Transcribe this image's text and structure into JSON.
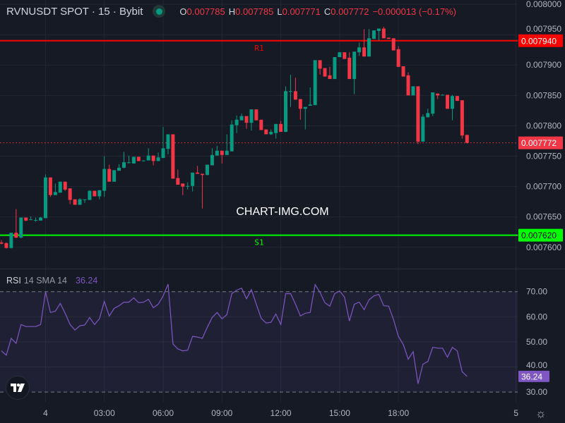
{
  "header": {
    "title": "RVNUSDT SPOT · 15 · Bybit",
    "status_dot_color": "#089981",
    "ohlc": {
      "o_label": "O",
      "o_value": "0.007785",
      "h_label": "H",
      "h_value": "0.007785",
      "l_label": "L",
      "l_value": "0.007771",
      "c_label": "C",
      "c_value": "0.007772",
      "change": "−0.000013 (−0.17%)"
    }
  },
  "watermark": "CHART-IMG.COM",
  "rsi_legend": {
    "name": "RSI",
    "params": "14 SMA 14",
    "value": "36.24"
  },
  "chart_data": [
    {
      "type": "candlestick",
      "interval_minutes": 15,
      "colors": {
        "up": "#089981",
        "down": "#f23645",
        "last_price_line": "#f23645"
      },
      "ylim": [
        0.007565,
        0.008007
      ],
      "grid": true,
      "y_ticks": [
        "0.008000",
        "0.007950",
        "0.007900",
        "0.007850",
        "0.007800",
        "0.007750",
        "0.007700",
        "0.007650",
        "0.007600"
      ],
      "x_ticks": [
        {
          "label": "4",
          "time": "04 00:00"
        },
        {
          "label": "03:00",
          "time": "04 03:00"
        },
        {
          "label": "06:00",
          "time": "04 06:00"
        },
        {
          "label": "09:00",
          "time": "04 09:00"
        },
        {
          "label": "12:00",
          "time": "04 12:00"
        },
        {
          "label": "15:00",
          "time": "04 15:00"
        },
        {
          "label": "18:00",
          "time": "04 18:00"
        },
        {
          "label": "5",
          "time": "05 00:00"
        }
      ],
      "levels": [
        {
          "name": "R1",
          "price": "0.007940",
          "color": "#ff0000",
          "text_color": "#ffffff"
        },
        {
          "name": "S1",
          "price": "0.007620",
          "color": "#00ff00",
          "text_color": "#000000"
        }
      ],
      "last_price": "0.007772",
      "columns": [
        "time",
        "open",
        "high",
        "low",
        "close"
      ],
      "candles": [
        [
          "03 21:45",
          0.007608,
          0.007612,
          0.007605,
          0.007606
        ],
        [
          "03 22:00",
          0.007607,
          0.007608,
          0.007598,
          0.007599
        ],
        [
          "03 22:15",
          0.007599,
          0.007624,
          0.007598,
          0.007624
        ],
        [
          "03 22:30",
          0.007624,
          0.007663,
          0.007615,
          0.007616
        ],
        [
          "03 22:45",
          0.007616,
          0.007649,
          0.007615,
          0.007649
        ],
        [
          "03 23:00",
          0.007649,
          0.007649,
          0.007643,
          0.007644
        ],
        [
          "03 23:15",
          0.007645,
          0.007651,
          0.007645,
          0.007646
        ],
        [
          "03 23:30",
          0.007645,
          0.007649,
          0.007642,
          0.007645
        ],
        [
          "03 23:45",
          0.007644,
          0.00765,
          0.007644,
          0.007649
        ],
        [
          "04 00:00",
          0.007648,
          0.00772,
          0.007648,
          0.007715
        ],
        [
          "04 00:15",
          0.007715,
          0.007715,
          0.007683,
          0.007686
        ],
        [
          "04 00:30",
          0.007686,
          0.007705,
          0.007686,
          0.007691
        ],
        [
          "04 00:45",
          0.00769,
          0.007708,
          0.00769,
          0.007708
        ],
        [
          "04 01:00",
          0.007708,
          0.007708,
          0.007693,
          0.007695
        ],
        [
          "04 01:15",
          0.007697,
          0.007697,
          0.007671,
          0.007678
        ],
        [
          "04 01:30",
          0.007679,
          0.007679,
          0.00767,
          0.00767
        ],
        [
          "04 01:45",
          0.00767,
          0.007681,
          0.00767,
          0.007679
        ],
        [
          "04 02:00",
          0.007679,
          0.007679,
          0.007673,
          0.007679
        ],
        [
          "04 02:15",
          0.007678,
          0.007694,
          0.007678,
          0.007693
        ],
        [
          "04 02:30",
          0.007693,
          0.007693,
          0.007684,
          0.007684
        ],
        [
          "04 02:45",
          0.007684,
          0.007694,
          0.007679,
          0.007694
        ],
        [
          "04 03:00",
          0.007693,
          0.00775,
          0.007683,
          0.007729
        ],
        [
          "04 03:15",
          0.007729,
          0.007736,
          0.007708,
          0.007708
        ],
        [
          "04 03:30",
          0.007708,
          0.007727,
          0.007708,
          0.007727
        ],
        [
          "04 03:45",
          0.007726,
          0.007737,
          0.007726,
          0.007731
        ],
        [
          "04 04:00",
          0.007731,
          0.007757,
          0.00773,
          0.00774
        ],
        [
          "04 04:15",
          0.00774,
          0.007751,
          0.007738,
          0.00774
        ],
        [
          "04 04:30",
          0.007738,
          0.007749,
          0.007738,
          0.007749
        ],
        [
          "04 04:45",
          0.007749,
          0.007749,
          0.007742,
          0.007742
        ],
        [
          "04 05:00",
          0.007743,
          0.007743,
          0.007741,
          0.007743
        ],
        [
          "04 05:15",
          0.007743,
          0.007763,
          0.007743,
          0.007751
        ],
        [
          "04 05:30",
          0.007751,
          0.007751,
          0.007735,
          0.007742
        ],
        [
          "04 05:45",
          0.007742,
          0.007756,
          0.007742,
          0.007748
        ],
        [
          "04 06:00",
          0.007747,
          0.007798,
          0.007747,
          0.007763
        ],
        [
          "04 06:15",
          0.007762,
          0.007786,
          0.007753,
          0.007786
        ],
        [
          "04 06:30",
          0.007786,
          0.007786,
          0.007713,
          0.007713
        ],
        [
          "04 06:45",
          0.007714,
          0.007728,
          0.007703,
          0.007703
        ],
        [
          "04 07:00",
          0.007705,
          0.007705,
          0.007686,
          0.0077
        ],
        [
          "04 07:15",
          0.007701,
          0.007707,
          0.007695,
          0.007701
        ],
        [
          "04 07:30",
          0.007701,
          0.007723,
          0.007692,
          0.007723
        ],
        [
          "04 07:45",
          0.007723,
          0.007734,
          0.007721,
          0.007721
        ],
        [
          "04 08:00",
          0.007721,
          0.007721,
          0.007664,
          0.007719
        ],
        [
          "04 08:15",
          0.007719,
          0.007736,
          0.007719,
          0.007736
        ],
        [
          "04 08:30",
          0.007735,
          0.007763,
          0.007735,
          0.007752
        ],
        [
          "04 08:45",
          0.007751,
          0.007767,
          0.007751,
          0.007759
        ],
        [
          "04 09:00",
          0.007759,
          0.007759,
          0.007738,
          0.007752
        ],
        [
          "04 09:15",
          0.007752,
          0.007786,
          0.007752,
          0.007759
        ],
        [
          "04 09:30",
          0.007758,
          0.007809,
          0.007758,
          0.007802
        ],
        [
          "04 09:45",
          0.007801,
          0.007817,
          0.007788,
          0.00781
        ],
        [
          "04 10:00",
          0.007809,
          0.00782,
          0.007809,
          0.007816
        ],
        [
          "04 10:15",
          0.007816,
          0.007816,
          0.007795,
          0.007805
        ],
        [
          "04 10:30",
          0.007805,
          0.007827,
          0.007792,
          0.007827
        ],
        [
          "04 10:45",
          0.007827,
          0.007827,
          0.007809,
          0.007809
        ],
        [
          "04 11:00",
          0.00781,
          0.00781,
          0.007793,
          0.007793
        ],
        [
          "04 11:15",
          0.007794,
          0.007794,
          0.007786,
          0.007786
        ],
        [
          "04 11:30",
          0.007786,
          0.007794,
          0.007785,
          0.00779
        ],
        [
          "04 11:45",
          0.007788,
          0.007803,
          0.007779,
          0.007803
        ],
        [
          "04 12:00",
          0.007803,
          0.007808,
          0.00779,
          0.00779
        ],
        [
          "04 12:15",
          0.00779,
          0.007865,
          0.00779,
          0.007857
        ],
        [
          "04 12:30",
          0.007857,
          0.007884,
          0.007831,
          0.007857
        ],
        [
          "04 12:45",
          0.007857,
          0.007879,
          0.007843,
          0.007843
        ],
        [
          "04 13:00",
          0.007844,
          0.007844,
          0.00781,
          0.007828
        ],
        [
          "04 13:15",
          0.007828,
          0.007831,
          0.007794,
          0.007831
        ],
        [
          "04 13:30",
          0.007833,
          0.007863,
          0.007833,
          0.007835
        ],
        [
          "04 13:45",
          0.007834,
          0.007908,
          0.007834,
          0.007908
        ],
        [
          "04 14:00",
          0.007908,
          0.007908,
          0.007884,
          0.007894
        ],
        [
          "04 14:15",
          0.007895,
          0.007895,
          0.007881,
          0.007881
        ],
        [
          "04 14:30",
          0.007883,
          0.007897,
          0.007877,
          0.007877
        ],
        [
          "04 14:45",
          0.007877,
          0.007913,
          0.007877,
          0.007913
        ],
        [
          "04 15:00",
          0.007913,
          0.007921,
          0.007913,
          0.007921
        ],
        [
          "04 15:15",
          0.007921,
          0.007921,
          0.00791,
          0.00791
        ],
        [
          "04 15:30",
          0.007912,
          0.007921,
          0.007877,
          0.007877
        ],
        [
          "04 15:45",
          0.007877,
          0.007922,
          0.007852,
          0.007922
        ],
        [
          "04 16:00",
          0.007921,
          0.007937,
          0.007915,
          0.007929
        ],
        [
          "04 16:15",
          0.007929,
          0.007959,
          0.007914,
          0.007914
        ],
        [
          "04 16:30",
          0.007914,
          0.007959,
          0.007914,
          0.007944
        ],
        [
          "04 16:45",
          0.007943,
          0.007957,
          0.007943,
          0.007957
        ],
        [
          "04 17:00",
          0.007956,
          0.00796,
          0.00794,
          0.00796
        ],
        [
          "04 17:15",
          0.00796,
          0.007963,
          0.007944,
          0.007944
        ],
        [
          "04 17:30",
          0.007945,
          0.007945,
          0.007943,
          0.007943
        ],
        [
          "04 17:45",
          0.007944,
          0.007944,
          0.007924,
          0.007924
        ],
        [
          "04 18:00",
          0.007926,
          0.007931,
          0.007897,
          0.007897
        ],
        [
          "04 18:15",
          0.007898,
          0.007898,
          0.007881,
          0.007881
        ],
        [
          "04 18:30",
          0.007883,
          0.007888,
          0.00785,
          0.00785
        ],
        [
          "04 18:45",
          0.00785,
          0.007865,
          0.00785,
          0.007865
        ],
        [
          "04 19:00",
          0.007865,
          0.007865,
          0.00777,
          0.007774
        ],
        [
          "04 19:15",
          0.007774,
          0.007819,
          0.007774,
          0.007815
        ],
        [
          "04 19:30",
          0.007814,
          0.007828,
          0.007814,
          0.007821
        ],
        [
          "04 19:45",
          0.00782,
          0.007855,
          0.007816,
          0.007855
        ],
        [
          "04 20:00",
          0.007853,
          0.007853,
          0.007844,
          0.00785
        ],
        [
          "04 20:15",
          0.007851,
          0.007852,
          0.00785,
          0.007851
        ],
        [
          "04 20:30",
          0.007851,
          0.007851,
          0.007828,
          0.007828
        ],
        [
          "04 20:45",
          0.007828,
          0.007851,
          0.007809,
          0.007849
        ],
        [
          "04 21:00",
          0.007849,
          0.007849,
          0.007841,
          0.007841
        ],
        [
          "04 21:15",
          0.007842,
          0.007842,
          0.007779,
          0.007784
        ],
        [
          "04 21:30",
          0.007785,
          0.007785,
          0.007771,
          0.007772
        ]
      ]
    },
    {
      "type": "line",
      "name": "RSI 14 SMA 14",
      "color": "#7e57c2",
      "ylim": [
        26.1,
        78.9
      ],
      "y_ticks": [
        "70.00",
        "60.00",
        "50.00",
        "40.00",
        "30.00"
      ],
      "bands": {
        "upper": 70,
        "lower": 30,
        "fill": "#7e57c2"
      },
      "last_value": "36.24",
      "values": [
        46.4,
        44.7,
        51.4,
        49.4,
        56.9,
        56.1,
        56.1,
        56.1,
        56.9,
        70.0,
        61.7,
        62.2,
        65.3,
        61.4,
        56.9,
        54.7,
        56.4,
        56.7,
        59.7,
        56.9,
        59.2,
        66.1,
        60.3,
        63.3,
        64.4,
        65.8,
        65.8,
        67.5,
        65.6,
        65.8,
        67.0,
        63.6,
        65.0,
        68.3,
        73.0,
        49.2,
        47.2,
        46.4,
        46.7,
        52.2,
        51.9,
        51.4,
        55.8,
        59.7,
        61.7,
        59.2,
        60.8,
        69.2,
        70.6,
        71.4,
        67.2,
        70.8,
        65.0,
        59.4,
        57.5,
        57.8,
        61.1,
        56.9,
        69.2,
        69.2,
        65.0,
        60.3,
        61.4,
        61.7,
        72.8,
        69.7,
        65.6,
        64.2,
        69.2,
        70.3,
        67.8,
        58.3,
        65.0,
        65.8,
        62.8,
        66.7,
        68.3,
        68.9,
        64.4,
        64.2,
        58.9,
        52.2,
        48.9,
        43.1,
        46.1,
        33.3,
        41.1,
        42.2,
        47.8,
        47.5,
        47.5,
        43.9,
        47.8,
        46.4,
        38.1,
        36.24
      ]
    }
  ],
  "icons": {
    "logo": "tradingview-logo-icon",
    "settings": "gear-icon",
    "status": "market-status-dot-icon"
  }
}
